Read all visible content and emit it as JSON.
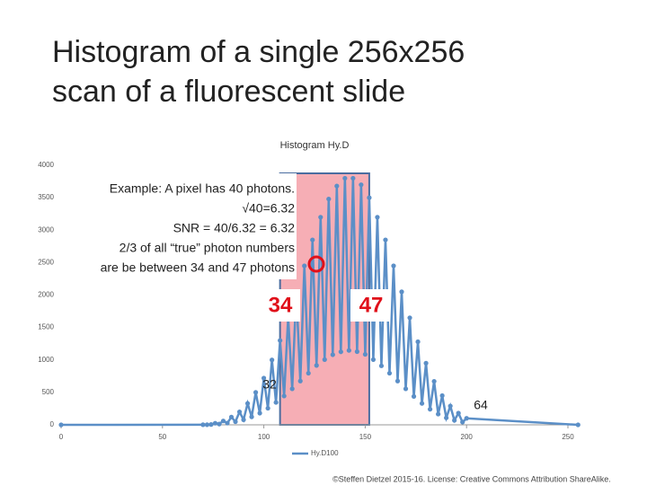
{
  "slide_title": [
    "Histogram of a single 256x256",
    "scan of a fluorescent slide"
  ],
  "annotation_lines": [
    "Example: A pixel has 40 photons.",
    "√40=6.32",
    "SNR = 40/6.32 = 6.32",
    "2/3 of all “true” photon numbers",
    "are be between 34 and 47 photons"
  ],
  "marker_labels": {
    "low": "34",
    "high": "47",
    "left": "32",
    "right": "64"
  },
  "footer": "©Steffen Dietzel 2015-16. License: Creative Commons Attribution ShareAlike.",
  "chart_data": {
    "type": "line",
    "title": "Histogram Hy.D",
    "xlim": [
      0,
      250
    ],
    "xticks": [
      0,
      50,
      100,
      150,
      200,
      250
    ],
    "ylim": [
      0,
      4000
    ],
    "yticks": [
      0,
      500,
      1000,
      1500,
      2000,
      2500,
      3000,
      3500,
      4000
    ],
    "highlight_range": [
      108,
      152
    ],
    "highlight_color": "#f4a0a8",
    "series": [
      {
        "name": "Hy.D100",
        "color": "#5b8fc7",
        "x": [
          0,
          70,
          72,
          74,
          76,
          78,
          80,
          82,
          84,
          86,
          88,
          90,
          92,
          94,
          96,
          98,
          100,
          102,
          104,
          106,
          108,
          110,
          112,
          114,
          116,
          118,
          120,
          122,
          124,
          126,
          128,
          130,
          132,
          134,
          136,
          138,
          140,
          142,
          144,
          146,
          148,
          150,
          152,
          154,
          156,
          158,
          160,
          162,
          164,
          166,
          168,
          170,
          172,
          174,
          176,
          178,
          180,
          182,
          184,
          186,
          188,
          190,
          192,
          194,
          196,
          198,
          200,
          255
        ],
        "values": [
          0,
          2,
          2,
          5,
          25,
          12,
          60,
          27,
          120,
          48,
          200,
          78,
          330,
          123,
          500,
          180,
          720,
          255,
          1000,
          345,
          1300,
          444,
          1660,
          555,
          2050,
          675,
          2450,
          795,
          2850,
          915,
          3200,
          1005,
          3480,
          1080,
          3680,
          1125,
          3800,
          1146,
          3800,
          1128,
          3700,
          1086,
          3500,
          1005,
          3200,
          909,
          2850,
          795,
          2450,
          675,
          2050,
          555,
          1650,
          438,
          1280,
          330,
          950,
          240,
          670,
          165,
          450,
          108,
          290,
          69,
          180,
          42,
          100,
          0
        ]
      }
    ]
  }
}
